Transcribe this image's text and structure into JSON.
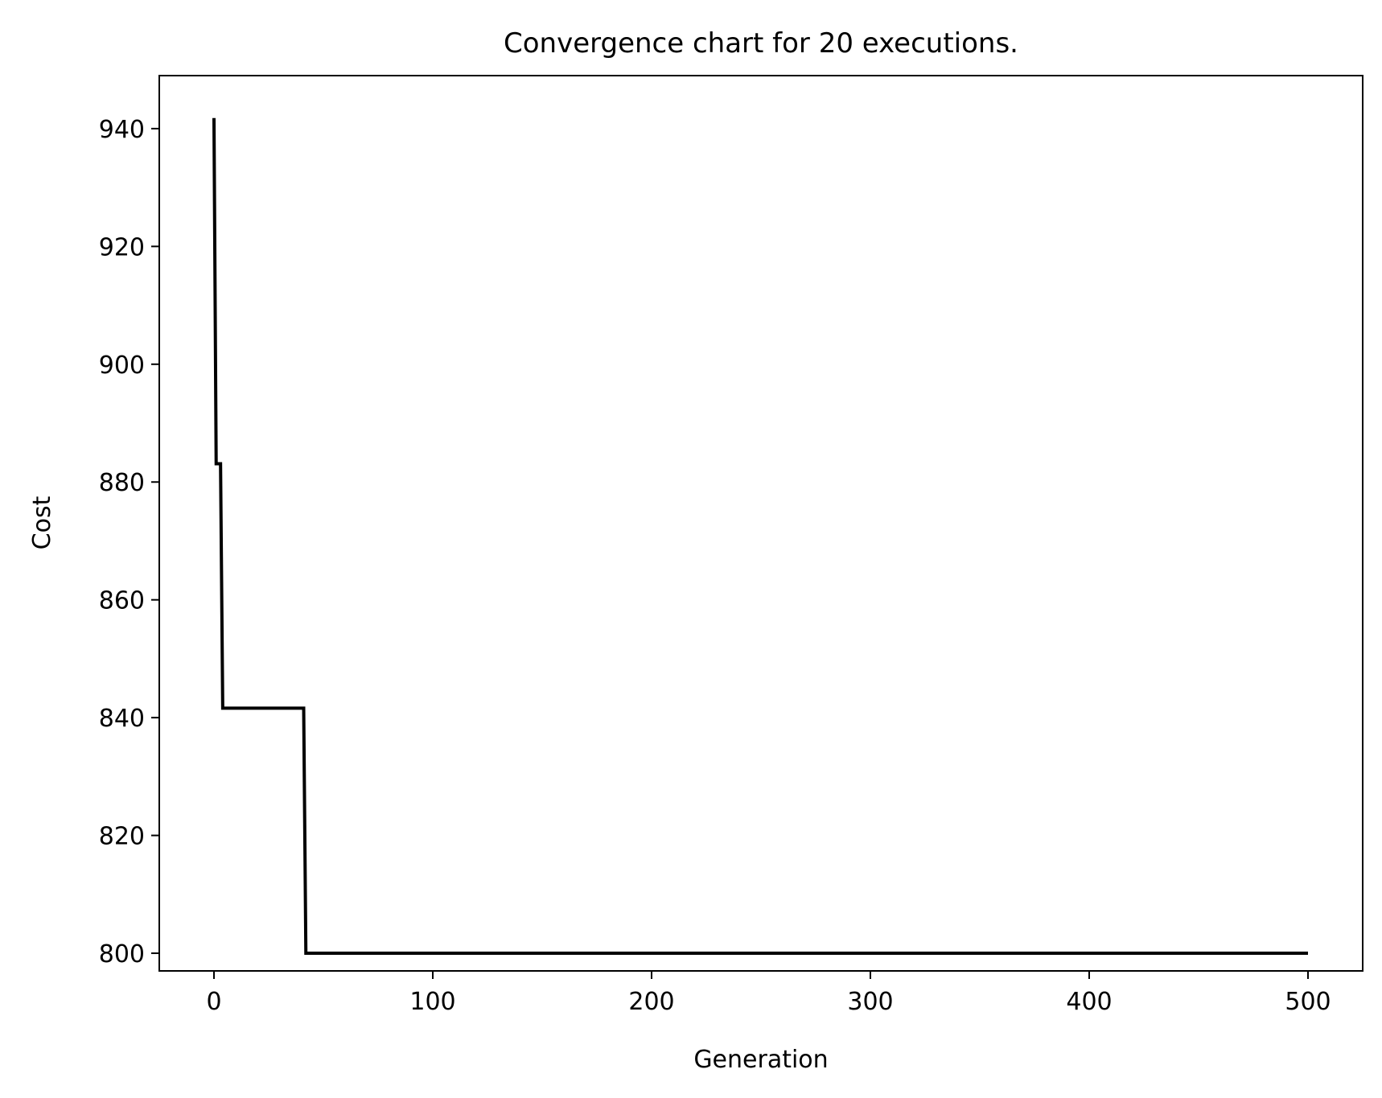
{
  "chart_data": {
    "type": "line",
    "title": "Convergence chart for 20 executions.",
    "xlabel": "Generation",
    "ylabel": "Cost",
    "xlim": [
      -25,
      525
    ],
    "ylim": [
      797,
      949
    ],
    "xticks": [
      0,
      100,
      200,
      300,
      400,
      500
    ],
    "xtick_labels": [
      "0",
      "100",
      "200",
      "300",
      "400",
      "500"
    ],
    "yticks": [
      800,
      820,
      840,
      860,
      880,
      900,
      920,
      940
    ],
    "ytick_labels": [
      "800",
      "820",
      "840",
      "860",
      "880",
      "900",
      "920",
      "940"
    ],
    "grid": false,
    "legend": "none",
    "series": [
      {
        "color": "#000000",
        "x": [
          0,
          1,
          2,
          3,
          4,
          5,
          40,
          41,
          42,
          500
        ],
        "y": [
          941.8,
          883.1,
          883.1,
          883.1,
          841.6,
          841.6,
          841.6,
          841.6,
          800.0,
          800.0
        ]
      }
    ]
  }
}
